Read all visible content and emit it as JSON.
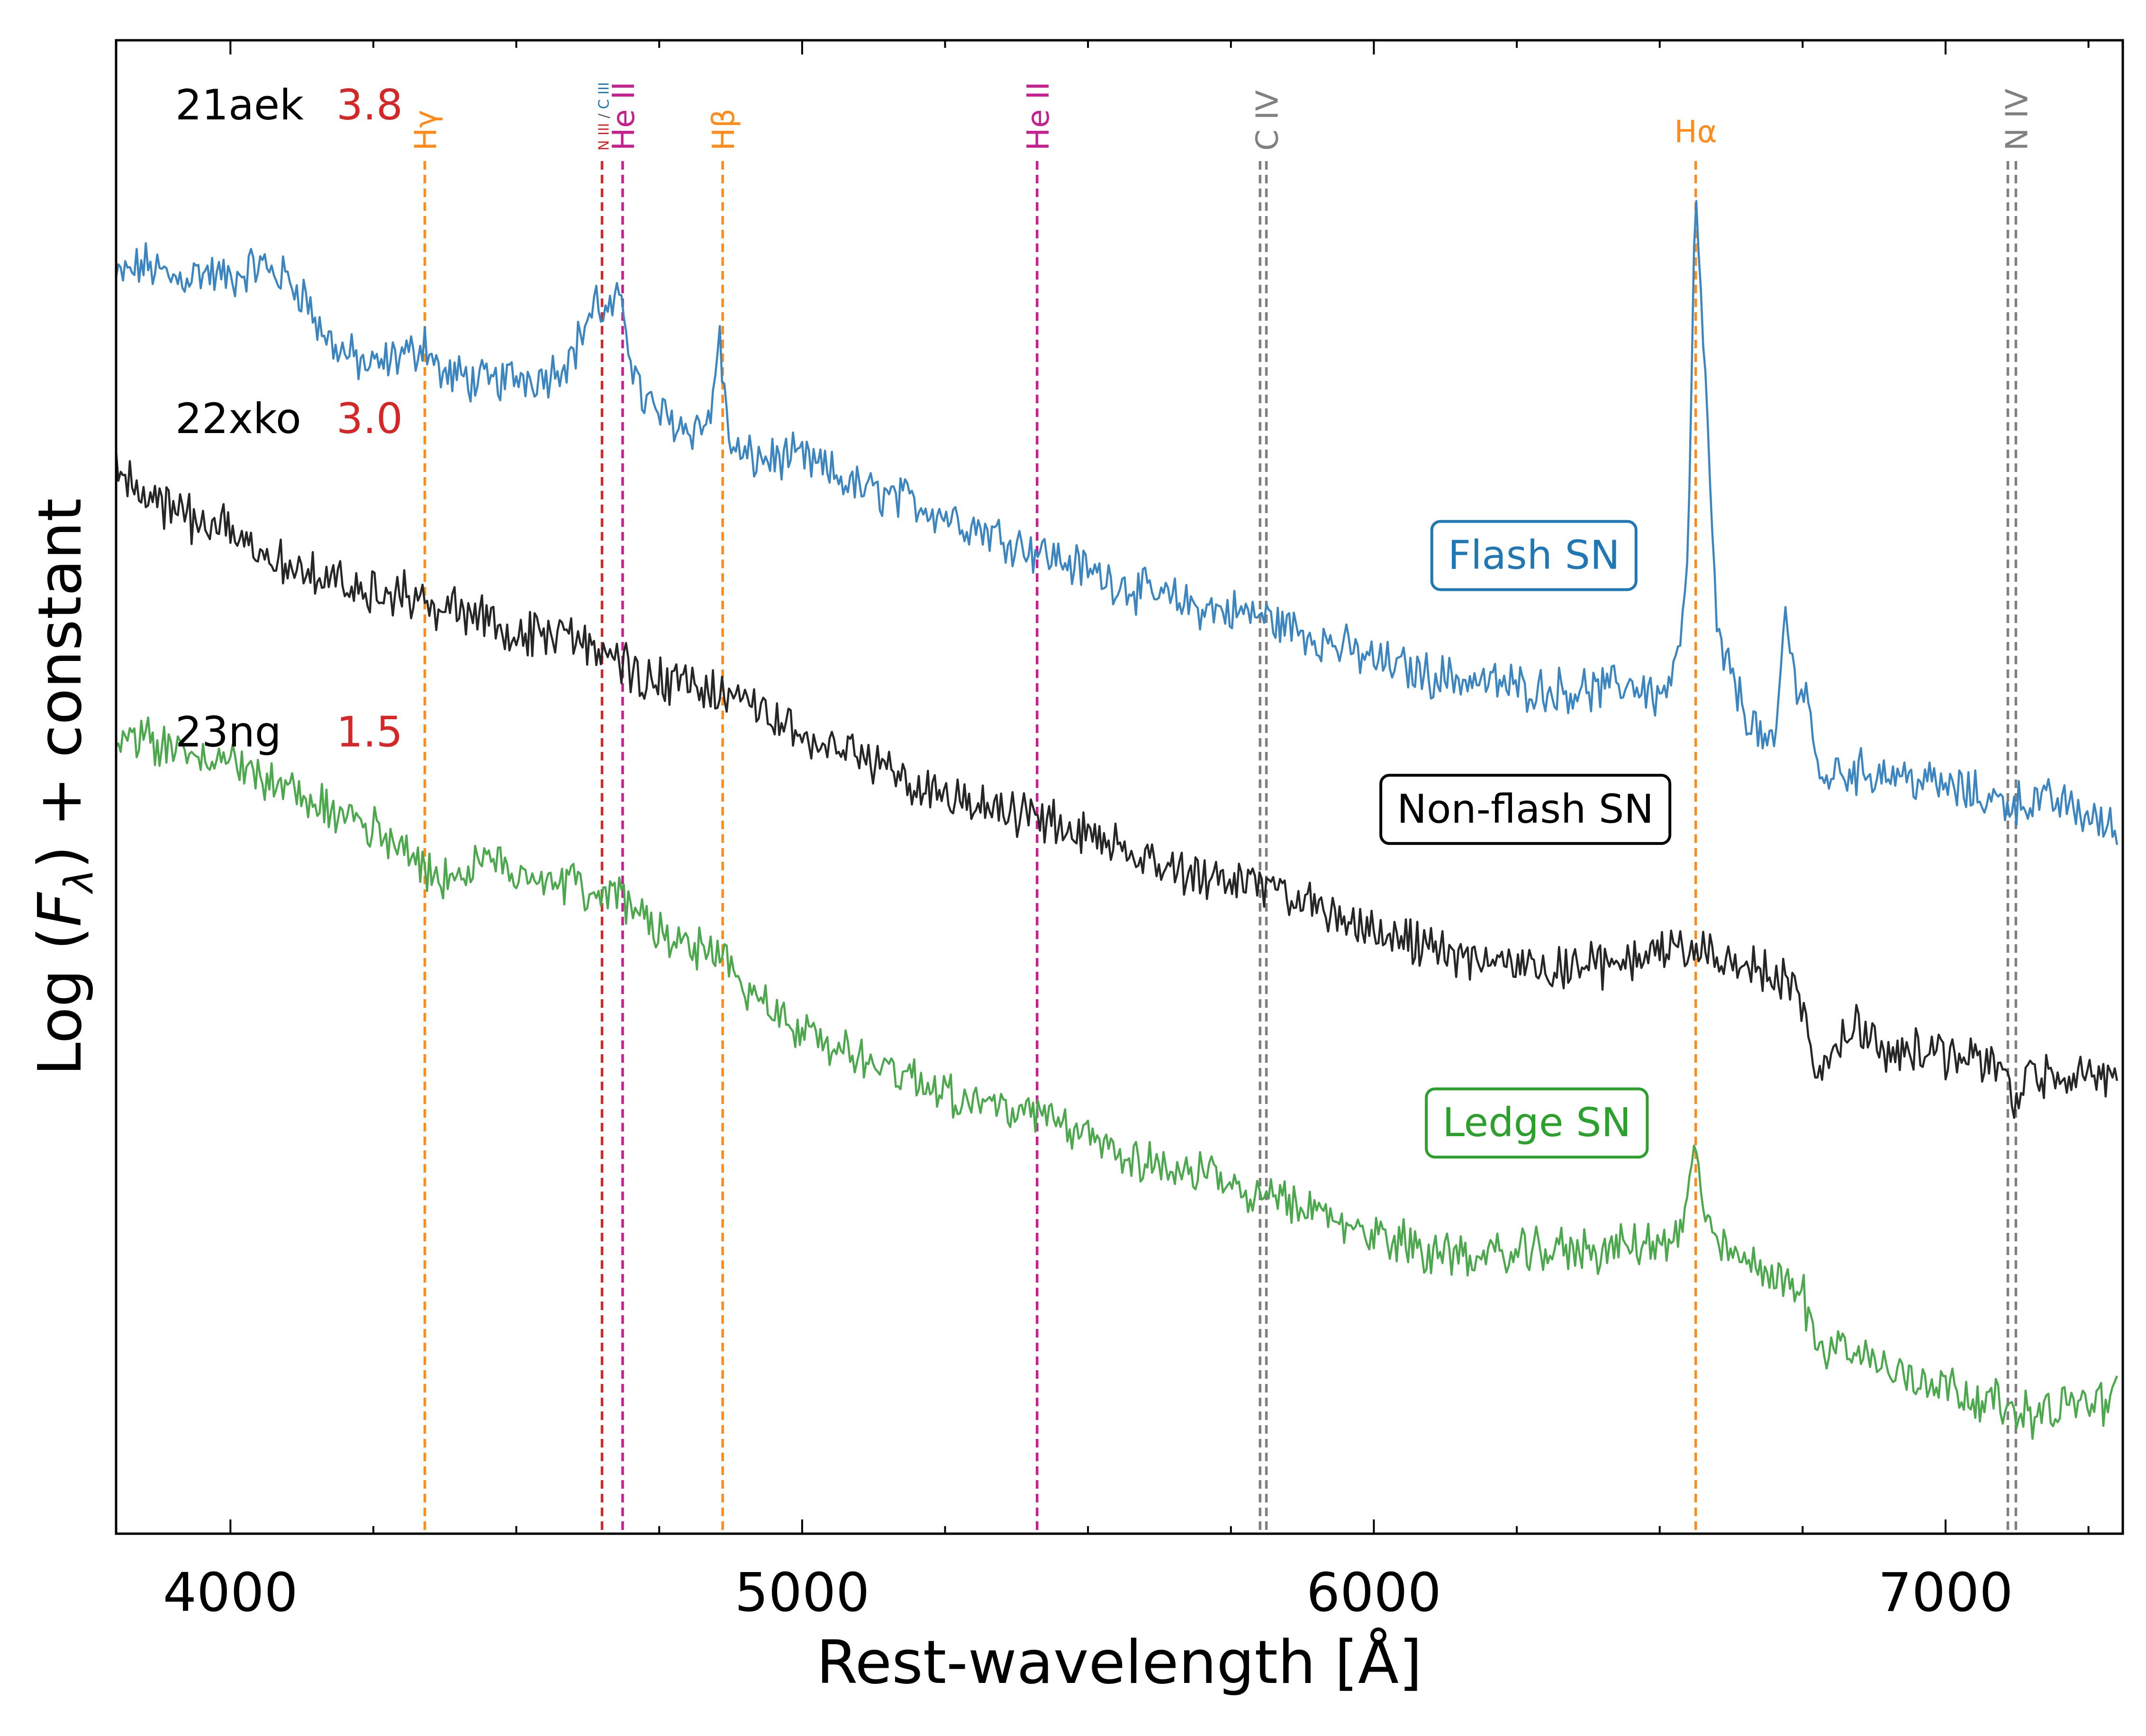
{
  "chart_data": {
    "type": "line",
    "xlabel": "Rest-wavelength [Å]",
    "ylabel_prefix": "Log (",
    "ylabel_F": "F",
    "ylabel_sub": "λ",
    "ylabel_suffix": ") + constant",
    "xlim": [
      3800,
      7310
    ],
    "ylim": [
      0,
      1
    ],
    "grid": false,
    "x_ticks": [
      4000,
      5000,
      6000,
      7000
    ],
    "x_tick_labels": [
      "4000",
      "5000",
      "6000",
      "7000"
    ],
    "minor_tick_step": 250,
    "series": [
      {
        "name": "21aek",
        "value_label": "3.8",
        "color": "#3b86c0",
        "label_y": 0.955,
        "x": [
          3800,
          3850,
          3900,
          3950,
          4000,
          4050,
          4100,
          4130,
          4150,
          4170,
          4200,
          4250,
          4300,
          4320,
          4340,
          4350,
          4370,
          4400,
          4450,
          4500,
          4550,
          4600,
          4620,
          4640,
          4655,
          4670,
          4686,
          4700,
          4720,
          4750,
          4800,
          4840,
          4855,
          4862,
          4870,
          4880,
          4900,
          4950,
          5000,
          5100,
          5200,
          5300,
          5400,
          5500,
          5600,
          5700,
          5800,
          5900,
          6000,
          6100,
          6200,
          6300,
          6400,
          6450,
          6500,
          6530,
          6550,
          6558,
          6563,
          6570,
          6585,
          6600,
          6650,
          6700,
          6720,
          6730,
          6760,
          6780,
          6800,
          6900,
          7000,
          7100,
          7200,
          7300
        ],
        "y": [
          0.84,
          0.85,
          0.84,
          0.845,
          0.84,
          0.85,
          0.84,
          0.83,
          0.81,
          0.8,
          0.79,
          0.78,
          0.79,
          0.79,
          0.8,
          0.79,
          0.775,
          0.775,
          0.77,
          0.775,
          0.775,
          0.79,
          0.81,
          0.825,
          0.815,
          0.82,
          0.825,
          0.79,
          0.76,
          0.75,
          0.74,
          0.745,
          0.81,
          0.765,
          0.74,
          0.725,
          0.72,
          0.72,
          0.72,
          0.7,
          0.69,
          0.675,
          0.66,
          0.645,
          0.63,
          0.62,
          0.615,
          0.6,
          0.585,
          0.575,
          0.57,
          0.565,
          0.565,
          0.57,
          0.56,
          0.58,
          0.65,
          0.82,
          0.89,
          0.85,
          0.73,
          0.6,
          0.55,
          0.52,
          0.62,
          0.58,
          0.56,
          0.5,
          0.51,
          0.51,
          0.5,
          0.49,
          0.49,
          0.47
        ]
      },
      {
        "name": "22xko",
        "value_label": "3.0",
        "color": "#262626",
        "label_y": 0.745,
        "x": [
          3800,
          3850,
          3900,
          4000,
          4100,
          4200,
          4300,
          4350,
          4400,
          4500,
          4550,
          4600,
          4650,
          4686,
          4700,
          4750,
          4800,
          4900,
          5000,
          5100,
          5200,
          5300,
          5400,
          5500,
          5600,
          5700,
          5800,
          5900,
          6000,
          6100,
          6200,
          6300,
          6400,
          6500,
          6560,
          6600,
          6650,
          6700,
          6720,
          6750,
          6760,
          6770,
          6780,
          6800,
          6850,
          6900,
          7000,
          7100,
          7120,
          7150,
          7200,
          7300
        ],
        "y": [
          0.71,
          0.7,
          0.685,
          0.67,
          0.65,
          0.635,
          0.63,
          0.62,
          0.62,
          0.6,
          0.6,
          0.6,
          0.59,
          0.585,
          0.575,
          0.57,
          0.57,
          0.555,
          0.535,
          0.52,
          0.5,
          0.49,
          0.48,
          0.47,
          0.455,
          0.44,
          0.435,
          0.42,
          0.405,
          0.39,
          0.385,
          0.38,
          0.38,
          0.39,
          0.395,
          0.385,
          0.385,
          0.37,
          0.37,
          0.355,
          0.335,
          0.32,
          0.305,
          0.33,
          0.34,
          0.325,
          0.32,
          0.315,
          0.29,
          0.31,
          0.305,
          0.31
        ]
      },
      {
        "name": "23ng",
        "value_label": "1.5",
        "color": "#4ca84c",
        "label_y": 0.535,
        "x": [
          3800,
          3850,
          3900,
          4000,
          4100,
          4200,
          4300,
          4350,
          4400,
          4450,
          4500,
          4600,
          4650,
          4686,
          4700,
          4750,
          4800,
          4862,
          4880,
          4900,
          4950,
          5000,
          5100,
          5200,
          5300,
          5400,
          5500,
          5600,
          5700,
          5800,
          5900,
          6000,
          6100,
          6200,
          6300,
          6400,
          6500,
          6540,
          6555,
          6563,
          6575,
          6600,
          6700,
          6750,
          6780,
          6800,
          6900,
          7000,
          7100,
          7150,
          7200,
          7300
        ],
        "y": [
          0.535,
          0.53,
          0.525,
          0.515,
          0.5,
          0.48,
          0.465,
          0.44,
          0.44,
          0.45,
          0.445,
          0.435,
          0.43,
          0.425,
          0.42,
          0.405,
          0.39,
          0.39,
          0.375,
          0.365,
          0.35,
          0.335,
          0.32,
          0.305,
          0.29,
          0.28,
          0.265,
          0.25,
          0.24,
          0.225,
          0.215,
          0.2,
          0.19,
          0.185,
          0.19,
          0.19,
          0.195,
          0.2,
          0.24,
          0.27,
          0.22,
          0.19,
          0.175,
          0.16,
          0.12,
          0.13,
          0.11,
          0.1,
          0.085,
          0.08,
          0.085,
          0.09
        ]
      }
    ],
    "line_markers": [
      {
        "label": "Hγ",
        "x": 4340,
        "color": "#ff8c1a",
        "rotated": true
      },
      {
        "label": "",
        "x": 4650,
        "color": "#d62728",
        "rotated": true
      },
      {
        "label": "He II",
        "x": 4686,
        "color": "#c71f8f",
        "rotated": true
      },
      {
        "label": "Hβ",
        "x": 4861,
        "color": "#ff8c1a",
        "rotated": true
      },
      {
        "label": "He II",
        "x": 5411,
        "color": "#c71f8f",
        "rotated": true
      },
      {
        "label": "",
        "x": 5801,
        "color": "#808080",
        "rotated": true
      },
      {
        "label": "C IV",
        "x": 5812,
        "color": "#808080",
        "rotated": true
      },
      {
        "label": "Hα",
        "x": 6563,
        "color": "#ff8c1a",
        "rotated": false
      },
      {
        "label": "",
        "x": 7109,
        "color": "#808080",
        "rotated": true
      },
      {
        "label": "N IV",
        "x": 7123,
        "color": "#808080",
        "rotated": true
      }
    ],
    "blend_label": {
      "part1": "N III",
      "sep": " / ",
      "part2": "C III",
      "color1": "#d62728",
      "color2": "#1f77b4",
      "x": 4650
    },
    "legend_boxes": [
      {
        "label": "Flash SN",
        "color": "#1f77b4",
        "x": 6280,
        "y": 0.655
      },
      {
        "label": "Non-flash SN",
        "color": "#000000",
        "x": 6265,
        "y": 0.485
      },
      {
        "label": "Ledge SN",
        "color": "#2ca02c",
        "x": 6285,
        "y": 0.275
      }
    ]
  }
}
